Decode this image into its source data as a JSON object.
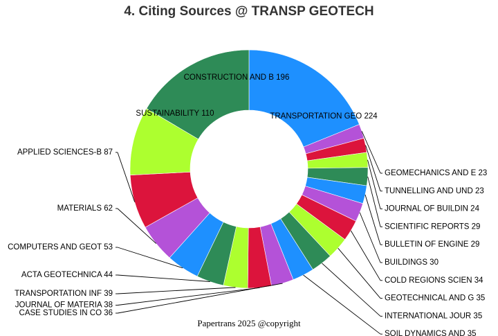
{
  "page": {
    "title": "4. Citing Sources @ TRANSP GEOTECH",
    "footer": "Papertrans 2025 @copyright"
  },
  "chart_data": {
    "type": "pie",
    "title": "4. Citing Sources @ TRANSP GEOTECH",
    "donut": true,
    "start": "top, clockwise",
    "palette": [
      "#1E90FF",
      "#B452D8",
      "#DC143C",
      "#ADFF2F",
      "#2E8B57"
    ],
    "slices": [
      {
        "label": "TRANSPORTATION GEO",
        "value": 224,
        "color": "#1E90FF",
        "label_text": "TRANSPORTATION GEO 224"
      },
      {
        "label": "GEOMECHANICS AND E",
        "value": 23,
        "color": "#B452D8",
        "label_text": "GEOMECHANICS AND E 23"
      },
      {
        "label": "TUNNELLING AND UND",
        "value": 23,
        "color": "#DC143C",
        "label_text": "TUNNELLING AND UND 23"
      },
      {
        "label": "JOURNAL OF BUILDIN",
        "value": 24,
        "color": "#ADFF2F",
        "label_text": "JOURNAL OF BUILDIN 24"
      },
      {
        "label": "SCIENTIFIC REPORTS",
        "value": 29,
        "color": "#2E8B57",
        "label_text": "SCIENTIFIC REPORTS 29"
      },
      {
        "label": "BULLETIN OF ENGINE",
        "value": 29,
        "color": "#1E90FF",
        "label_text": "BULLETIN OF ENGINE 29"
      },
      {
        "label": "BUILDINGS",
        "value": 30,
        "color": "#B452D8",
        "label_text": "BUILDINGS 30"
      },
      {
        "label": "COLD REGIONS SCIEN",
        "value": 34,
        "color": "#DC143C",
        "label_text": "COLD REGIONS SCIEN 34"
      },
      {
        "label": "GEOTECHNICAL AND G",
        "value": 35,
        "color": "#ADFF2F",
        "label_text": "GEOTECHNICAL AND G 35"
      },
      {
        "label": "INTERNATIONAL JOUR",
        "value": 35,
        "color": "#2E8B57",
        "label_text": "INTERNATIONAL JOUR 35"
      },
      {
        "label": "SOIL DYNAMICS AND",
        "value": 35,
        "color": "#1E90FF",
        "label_text": "SOIL DYNAMICS AND  35"
      },
      {
        "label": "CASE STUDIES IN CO",
        "value": 36,
        "color": "#B452D8",
        "label_text": "CASE STUDIES IN CO 36"
      },
      {
        "label": "JOURNAL OF MATERIA",
        "value": 38,
        "color": "#DC143C",
        "label_text": "JOURNAL OF MATERIA 38"
      },
      {
        "label": "TRANSPORTATION INF",
        "value": 39,
        "color": "#ADFF2F",
        "label_text": "TRANSPORTATION INF 39"
      },
      {
        "label": "ACTA GEOTECHNICA",
        "value": 44,
        "color": "#2E8B57",
        "label_text": "ACTA GEOTECHNICA 44"
      },
      {
        "label": "COMPUTERS AND GEOT",
        "value": 53,
        "color": "#1E90FF",
        "label_text": "COMPUTERS AND GEOT 53"
      },
      {
        "label": "MATERIALS",
        "value": 62,
        "color": "#B452D8",
        "label_text": "MATERIALS 62"
      },
      {
        "label": "APPLIED SCIENCES-B",
        "value": 87,
        "color": "#DC143C",
        "label_text": "APPLIED SCIENCES-B 87"
      },
      {
        "label": "SUSTAINABILITY",
        "value": 110,
        "color": "#ADFF2F",
        "label_text": "SUSTAINABILITY 110"
      },
      {
        "label": "CONSTRUCTION AND B",
        "value": 196,
        "color": "#2E8B57",
        "label_text": "CONSTRUCTION AND B 196"
      }
    ],
    "label_placement": {
      "inside": [
        "TRANSPORTATION GEO",
        "CONSTRUCTION AND B",
        "SUSTAINABILITY"
      ],
      "right_column": [
        "GEOMECHANICS AND E",
        "TUNNELLING AND UND",
        "JOURNAL OF BUILDIN",
        "SCIENTIFIC REPORTS",
        "BULLETIN OF ENGINE",
        "BUILDINGS",
        "COLD REGIONS SCIEN",
        "GEOTECHNICAL AND G",
        "INTERNATIONAL JOUR",
        "SOIL DYNAMICS AND"
      ],
      "left_column": [
        "CASE STUDIES IN CO",
        "JOURNAL OF MATERIA",
        "TRANSPORTATION INF",
        "ACTA GEOTECHNICA",
        "COMPUTERS AND GEOT",
        "MATERIALS",
        "APPLIED SCIENCES-B"
      ]
    }
  }
}
